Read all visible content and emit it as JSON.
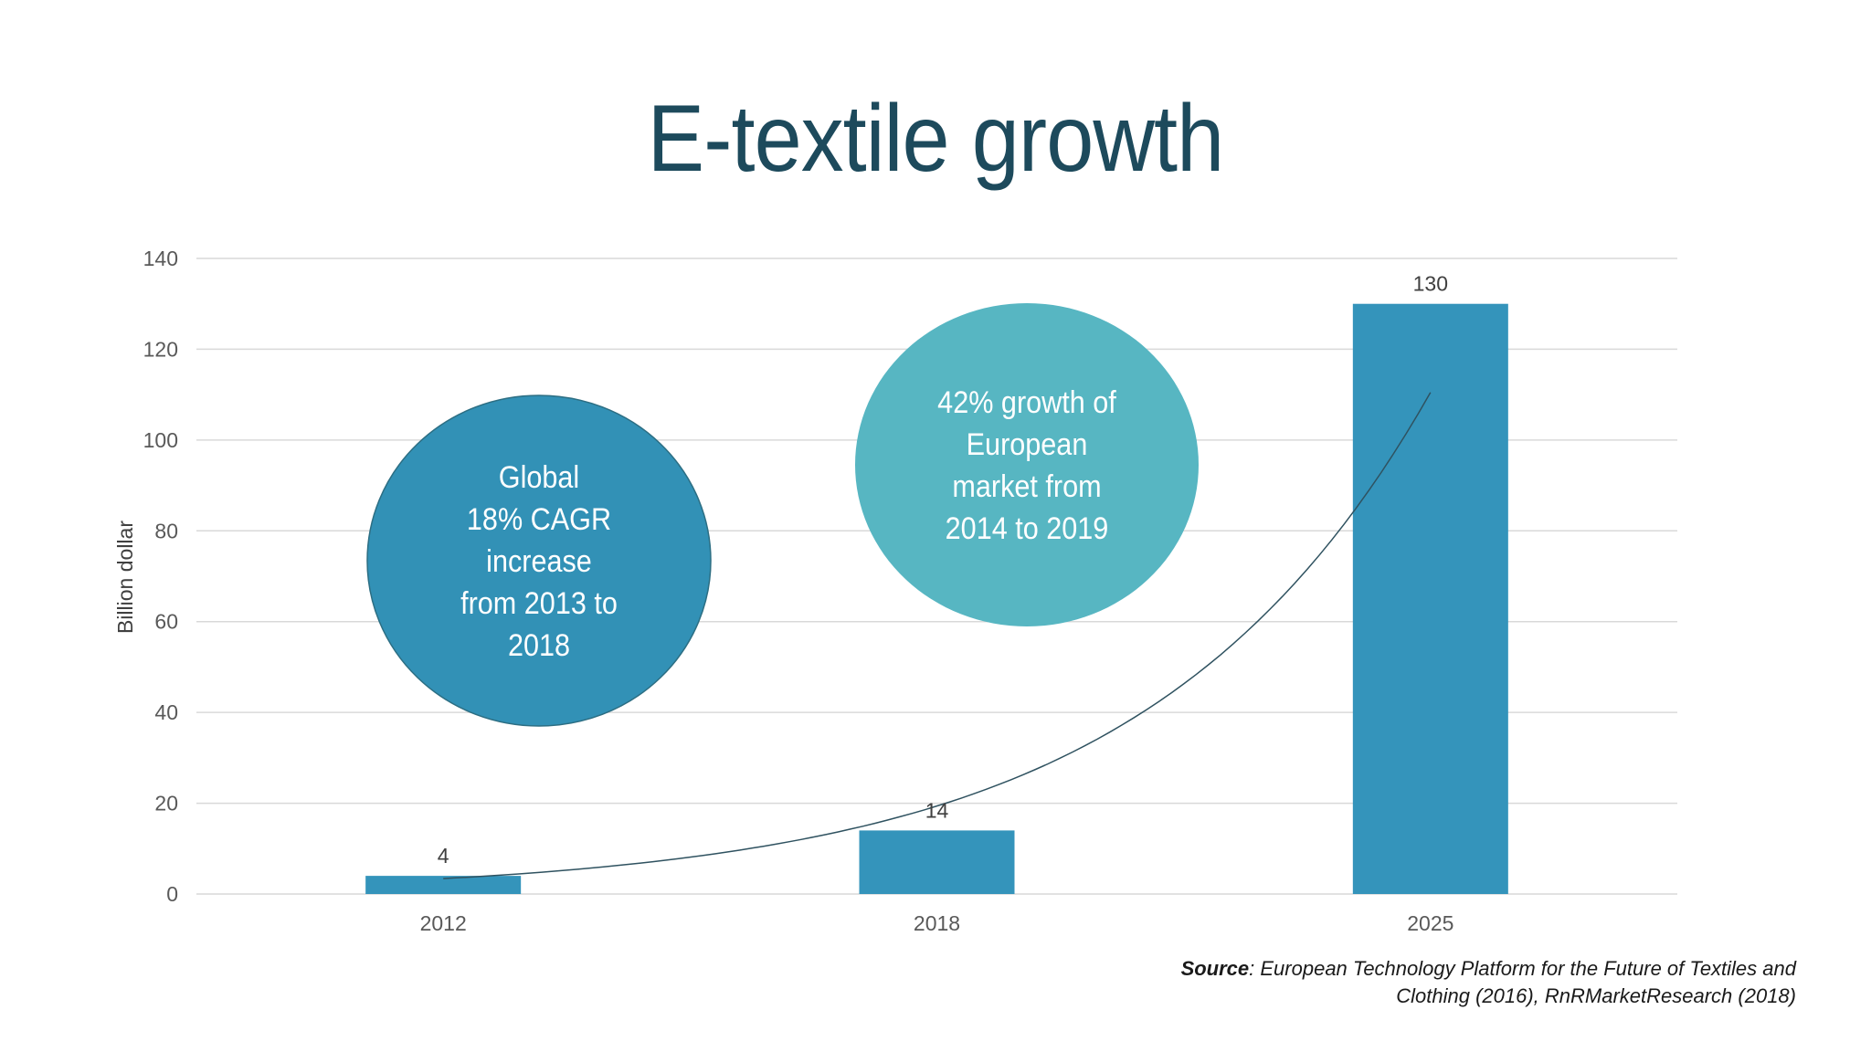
{
  "slide": {
    "title": "E-textile growth"
  },
  "colors": {
    "title": "#1d4a5c",
    "bar": "#3494bb",
    "bubble_global": "#3291b6",
    "bubble_global_border": "#2c6e83",
    "bubble_europe": "#57b6c2",
    "trendline": "#2f5260",
    "gridline": "#d9d9d9"
  },
  "chart_data": {
    "type": "bar",
    "categories": [
      "2012",
      "2018",
      "2025"
    ],
    "values": [
      4,
      14,
      130
    ],
    "data_labels": [
      "4",
      "14",
      "130"
    ],
    "ylabel": "Billion dollar",
    "xlabel": "",
    "ylim": [
      0,
      140
    ],
    "yticks": [
      0,
      20,
      40,
      60,
      80,
      100,
      120,
      140
    ],
    "grid": true,
    "legend": "none",
    "trendline": "exponential"
  },
  "bubbles": {
    "global": [
      "Global",
      "18% CAGR",
      "increase",
      "from 2013 to",
      "2018"
    ],
    "europe": [
      "42% growth of",
      "European",
      "market from",
      "2014 to 2019"
    ]
  },
  "source": {
    "label": "Source",
    "line1": ": European Technology Platform for the Future of Textiles and",
    "line2": "Clothing (2016), RnRMarketResearch (2018)"
  }
}
